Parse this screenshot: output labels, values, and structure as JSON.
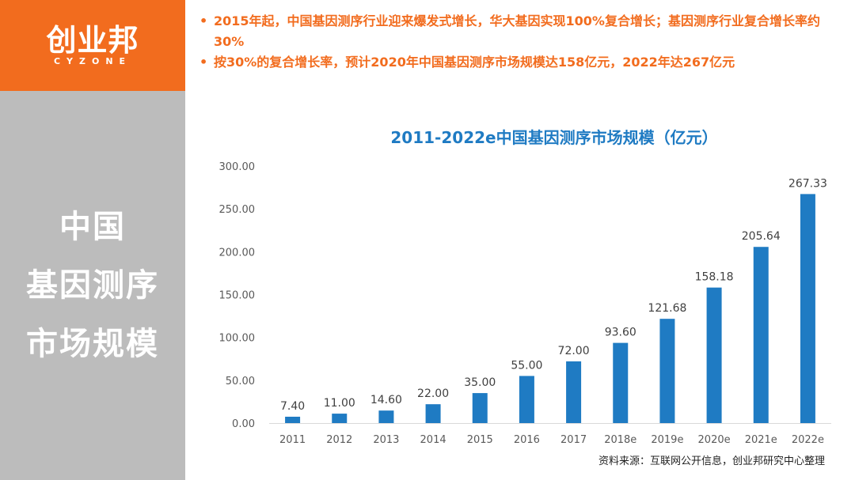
{
  "logo": {
    "main": "创业邦",
    "sub": "CYZONE"
  },
  "side_title": [
    "中国",
    "基因测序",
    "市场规模"
  ],
  "bullets": [
    "2015年起，中国基因测序行业迎来爆发式增长，华大基因实现100%复合增长；基因测序行业复合增长率约30%",
    "按30%的复合增长率，预计2020年中国基因测序市场规模达158亿元，2022年达267亿元"
  ],
  "bullet_marker": "•",
  "source": "资料来源：互联网公开信息，创业邦研究中心整理",
  "colors": {
    "accent": "#f26c1e",
    "bar": "#1f7bc3",
    "side_panel": "#bcbcbc"
  },
  "chart_data": {
    "type": "bar",
    "title": "2011-2022e中国基因测序市场规模（亿元）",
    "categories": [
      "2011",
      "2012",
      "2013",
      "2014",
      "2015",
      "2016",
      "2017",
      "2018e",
      "2019e",
      "2020e",
      "2021e",
      "2022e"
    ],
    "values": [
      7.4,
      11.0,
      14.6,
      22.0,
      35.0,
      55.0,
      72.0,
      93.6,
      121.68,
      158.18,
      205.64,
      267.33
    ],
    "value_labels": [
      "7.40",
      "11.00",
      "14.60",
      "22.00",
      "35.00",
      "55.00",
      "72.00",
      "93.60",
      "121.68",
      "158.18",
      "205.64",
      "267.33"
    ],
    "yticks": [
      "0.00",
      "50.00",
      "100.00",
      "150.00",
      "200.00",
      "250.00",
      "300.00"
    ],
    "ylim": [
      0,
      300
    ],
    "xlabel": "",
    "ylabel": "",
    "grid": false,
    "legend": "none"
  }
}
